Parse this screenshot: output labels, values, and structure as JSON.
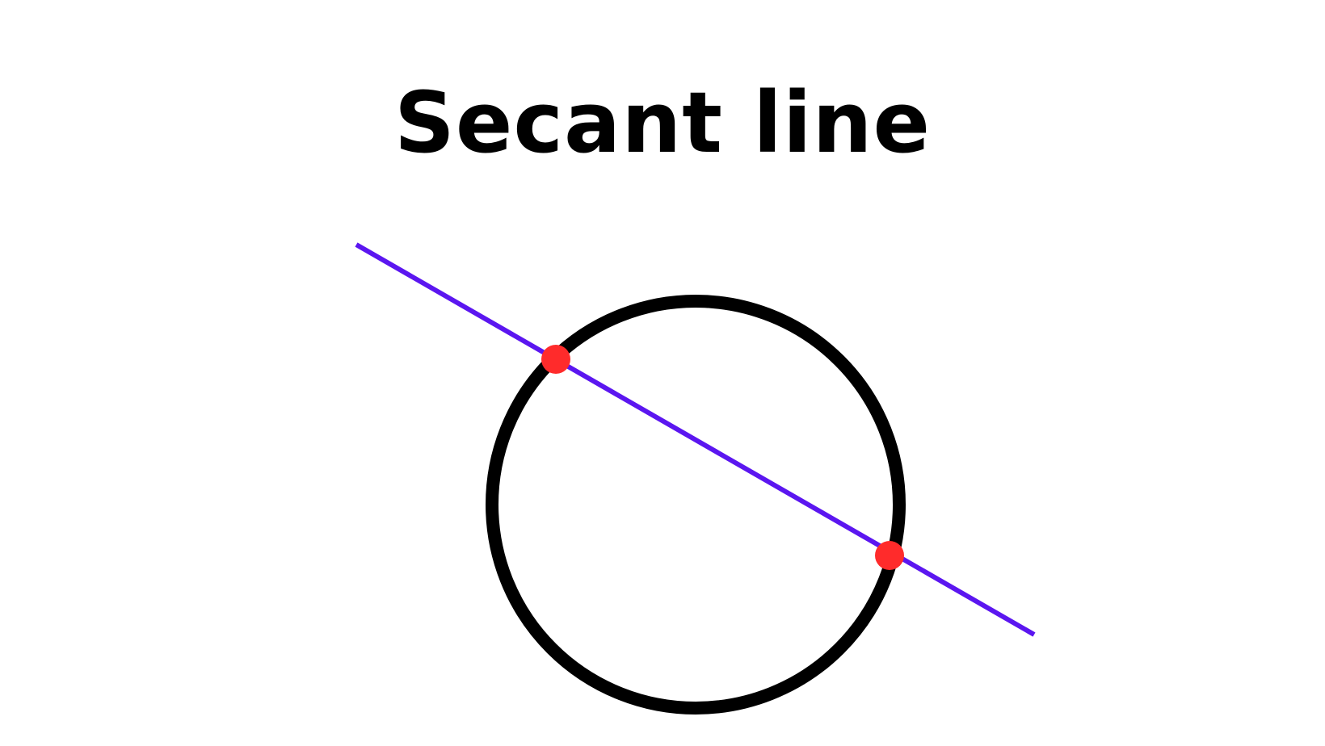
{
  "title": "Secant line",
  "colors": {
    "background": "#ffffff",
    "circle": "#000000",
    "secant_line": "#5b16f0",
    "intersection_points": "#ff2b2b",
    "title": "#000000"
  },
  "diagram": {
    "shapes": [
      "circle",
      "secant-line",
      "intersection-point-1",
      "intersection-point-2"
    ]
  }
}
